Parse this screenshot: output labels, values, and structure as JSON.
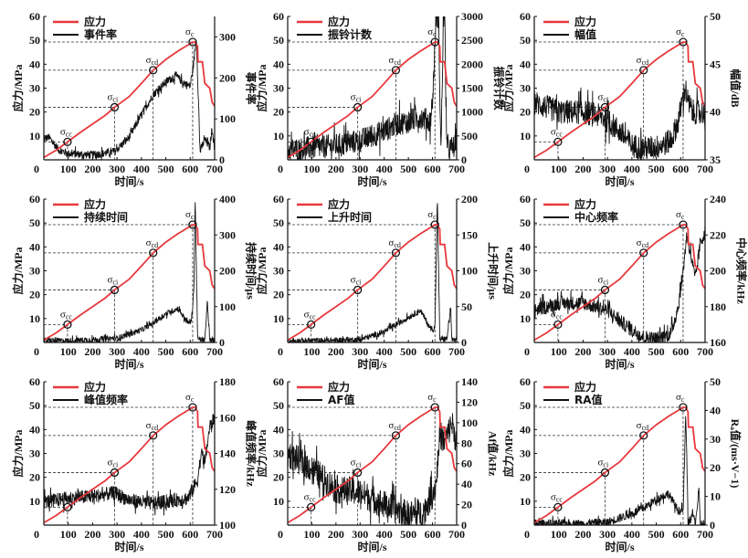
{
  "figure": {
    "x_tick_labels": [
      "0",
      "100",
      "200",
      "300",
      "400",
      "500",
      "600",
      "700"
    ],
    "xlabel": "时间/s",
    "left_ylabel": "应力/MPa",
    "left_tick_labels": [
      "10",
      "20",
      "30",
      "40",
      "50",
      "60"
    ],
    "stress_legend": "应力",
    "stress_color": "#e8383d",
    "ae_color": "#111111",
    "markers": [
      {
        "label": "σ",
        "sub": "cc",
        "t": 97,
        "stress": 7.5
      },
      {
        "label": "σ",
        "sub": "ci",
        "t": 290,
        "stress": 22
      },
      {
        "label": "σ",
        "sub": "cd",
        "t": 448,
        "stress": 37.5
      },
      {
        "label": "σ",
        "sub": "c",
        "t": 610,
        "stress": 49.3
      }
    ]
  },
  "chart_data": [
    {
      "type": "line",
      "title": "",
      "legend": [
        "应力",
        "事件率"
      ],
      "xlabel": "时间/s",
      "ylabel": "应力/MPa",
      "y2label": "事件率",
      "xlim": [
        0,
        700
      ],
      "ylim": [
        0,
        60
      ],
      "y2lim": [
        0,
        350
      ],
      "y2ticks": [
        "0",
        "100",
        "200",
        "300"
      ],
      "y2tickvals": [
        0,
        100,
        200,
        300
      ],
      "ae_profile": [
        [
          0,
          50
        ],
        [
          20,
          55
        ],
        [
          60,
          25
        ],
        [
          100,
          15
        ],
        [
          200,
          12
        ],
        [
          290,
          20
        ],
        [
          350,
          55
        ],
        [
          400,
          110
        ],
        [
          450,
          160
        ],
        [
          500,
          190
        ],
        [
          540,
          205
        ],
        [
          580,
          185
        ],
        [
          600,
          180
        ],
        [
          615,
          240
        ],
        [
          625,
          300
        ],
        [
          635,
          120
        ],
        [
          640,
          20
        ],
        [
          660,
          50
        ],
        [
          680,
          30
        ],
        [
          690,
          80
        ],
        [
          700,
          20
        ]
      ],
      "noise": 10
    },
    {
      "type": "line",
      "title": "",
      "legend": [
        "应力",
        "振铃计数"
      ],
      "xlabel": "时间/s",
      "ylabel": "应力/MPa",
      "y2label": "振铃计数",
      "xlim": [
        0,
        700
      ],
      "ylim": [
        0,
        60
      ],
      "y2lim": [
        0,
        3000
      ],
      "y2ticks": [
        "0",
        "500",
        "1000",
        "1500",
        "2000",
        "2500",
        "3000"
      ],
      "y2tickvals": [
        0,
        500,
        1000,
        1500,
        2000,
        2500,
        3000
      ],
      "ae_profile": [
        [
          0,
          200
        ],
        [
          100,
          250
        ],
        [
          200,
          300
        ],
        [
          300,
          400
        ],
        [
          400,
          600
        ],
        [
          450,
          750
        ],
        [
          500,
          800
        ],
        [
          550,
          900
        ],
        [
          590,
          800
        ],
        [
          600,
          1200
        ],
        [
          615,
          3000
        ],
        [
          625,
          3000
        ],
        [
          635,
          100
        ],
        [
          645,
          3000
        ],
        [
          650,
          3000
        ],
        [
          660,
          200
        ],
        [
          700,
          300
        ]
      ],
      "noise": 250
    },
    {
      "type": "line",
      "title": "",
      "legend": [
        "应力",
        "幅值"
      ],
      "xlabel": "时间/s",
      "ylabel": "应力/MPa",
      "y2label": "幅值/dB",
      "xlim": [
        0,
        700
      ],
      "ylim": [
        0,
        60
      ],
      "y2lim": [
        35,
        50
      ],
      "y2ticks": [
        "35",
        "40",
        "45",
        "50"
      ],
      "y2tickvals": [
        35,
        40,
        45,
        50
      ],
      "ae_profile": [
        [
          0,
          41
        ],
        [
          100,
          40
        ],
        [
          200,
          40
        ],
        [
          280,
          39.5
        ],
        [
          350,
          38
        ],
        [
          400,
          36.5
        ],
        [
          450,
          36.2
        ],
        [
          500,
          36.3
        ],
        [
          560,
          37
        ],
        [
          590,
          39
        ],
        [
          610,
          41.5
        ],
        [
          620,
          42.5
        ],
        [
          630,
          41
        ],
        [
          650,
          40
        ],
        [
          700,
          40
        ]
      ],
      "noise": 1.3
    },
    {
      "type": "line",
      "title": "",
      "legend": [
        "应力",
        "持续时间"
      ],
      "xlabel": "时间/s",
      "ylabel": "应力/MPa",
      "y2label": "持续时间/μs",
      "xlim": [
        0,
        700
      ],
      "ylim": [
        0,
        60
      ],
      "y2lim": [
        0,
        400
      ],
      "y2ticks": [
        "0",
        "100",
        "200",
        "300",
        "400"
      ],
      "y2tickvals": [
        0,
        100,
        200,
        300,
        400
      ],
      "ae_profile": [
        [
          0,
          5
        ],
        [
          100,
          5
        ],
        [
          200,
          8
        ],
        [
          300,
          12
        ],
        [
          400,
          35
        ],
        [
          450,
          55
        ],
        [
          500,
          80
        ],
        [
          550,
          95
        ],
        [
          590,
          55
        ],
        [
          605,
          60
        ],
        [
          615,
          150
        ],
        [
          620,
          400
        ],
        [
          625,
          220
        ],
        [
          630,
          10
        ],
        [
          660,
          5
        ],
        [
          670,
          115
        ],
        [
          680,
          5
        ],
        [
          700,
          5
        ]
      ],
      "noise": 8
    },
    {
      "type": "line",
      "title": "",
      "legend": [
        "应力",
        "上升时间"
      ],
      "xlabel": "时间/s",
      "ylabel": "应力/MPa",
      "y2label": "上升时间/μs",
      "xlim": [
        0,
        700
      ],
      "ylim": [
        0,
        60
      ],
      "y2lim": [
        0,
        200
      ],
      "y2ticks": [
        "0",
        "50",
        "100",
        "150",
        "200"
      ],
      "y2tickvals": [
        0,
        50,
        100,
        150,
        200
      ],
      "ae_profile": [
        [
          0,
          2
        ],
        [
          200,
          3
        ],
        [
          300,
          4
        ],
        [
          400,
          15
        ],
        [
          450,
          25
        ],
        [
          500,
          35
        ],
        [
          550,
          45
        ],
        [
          590,
          20
        ],
        [
          610,
          18
        ],
        [
          620,
          200
        ],
        [
          625,
          105
        ],
        [
          630,
          5
        ],
        [
          660,
          5
        ],
        [
          675,
          50
        ],
        [
          680,
          3
        ],
        [
          700,
          3
        ]
      ],
      "noise": 4
    },
    {
      "type": "line",
      "title": "",
      "legend": [
        "应力",
        "中心频率"
      ],
      "xlabel": "时间/s",
      "ylabel": "应力/MPa",
      "y2label": "中心频率/kHz",
      "xlim": [
        0,
        700
      ],
      "ylim": [
        0,
        60
      ],
      "y2lim": [
        160,
        240
      ],
      "y2ticks": [
        "160",
        "180",
        "200",
        "220",
        "240"
      ],
      "y2tickvals": [
        160,
        180,
        200,
        220,
        240
      ],
      "ae_profile": [
        [
          0,
          178
        ],
        [
          100,
          182
        ],
        [
          200,
          182
        ],
        [
          300,
          178
        ],
        [
          350,
          172
        ],
        [
          400,
          167
        ],
        [
          450,
          163
        ],
        [
          500,
          162
        ],
        [
          560,
          165
        ],
        [
          590,
          180
        ],
        [
          610,
          200
        ],
        [
          625,
          220
        ],
        [
          640,
          210
        ],
        [
          660,
          195
        ],
        [
          680,
          215
        ],
        [
          700,
          222
        ]
      ],
      "noise": 4
    },
    {
      "type": "line",
      "title": "",
      "legend": [
        "应力",
        "峰值频率"
      ],
      "xlabel": "时间/s",
      "ylabel": "应力/MPa",
      "y2label": "峰值频率/kHz",
      "xlim": [
        0,
        700
      ],
      "ylim": [
        0,
        60
      ],
      "y2lim": [
        100,
        180
      ],
      "y2ticks": [
        "100",
        "120",
        "140",
        "160",
        "180"
      ],
      "y2tickvals": [
        100,
        120,
        140,
        160,
        180
      ],
      "ae_profile": [
        [
          0,
          113
        ],
        [
          100,
          115
        ],
        [
          200,
          116
        ],
        [
          290,
          118
        ],
        [
          350,
          114
        ],
        [
          400,
          113
        ],
        [
          450,
          112
        ],
        [
          500,
          113
        ],
        [
          590,
          115
        ],
        [
          610,
          120
        ],
        [
          630,
          125
        ],
        [
          645,
          140
        ],
        [
          660,
          135
        ],
        [
          680,
          155
        ],
        [
          700,
          160
        ]
      ],
      "noise": 4
    },
    {
      "type": "line",
      "title": "",
      "legend": [
        "应力",
        "AF值"
      ],
      "xlabel": "时间/s",
      "ylabel": "应力/MPa",
      "y2label": "Af值/kHz",
      "xlim": [
        0,
        700
      ],
      "ylim": [
        0,
        60
      ],
      "y2lim": [
        0,
        140
      ],
      "y2ticks": [
        "0",
        "20",
        "40",
        "60",
        "80",
        "100",
        "120",
        "140"
      ],
      "y2tickvals": [
        0,
        20,
        40,
        60,
        80,
        100,
        120,
        140
      ],
      "ae_profile": [
        [
          0,
          70
        ],
        [
          100,
          55
        ],
        [
          200,
          35
        ],
        [
          300,
          32
        ],
        [
          400,
          20
        ],
        [
          450,
          15
        ],
        [
          500,
          10
        ],
        [
          560,
          12
        ],
        [
          600,
          30
        ],
        [
          615,
          40
        ],
        [
          630,
          90
        ],
        [
          650,
          80
        ],
        [
          680,
          100
        ],
        [
          700,
          80
        ]
      ],
      "noise": 14
    },
    {
      "type": "line",
      "title": "",
      "legend": [
        "应力",
        "RA值"
      ],
      "xlabel": "时间/s",
      "ylabel": "应力/MPa",
      "y2label": "Rₐ值/(ms·V−1)",
      "xlim": [
        0,
        700
      ],
      "ylim": [
        0,
        60
      ],
      "y2lim": [
        0,
        50
      ],
      "y2ticks": [
        "0",
        "10",
        "20",
        "30",
        "40",
        "50"
      ],
      "y2tickvals": [
        0,
        10,
        20,
        30,
        40,
        50
      ],
      "ae_profile": [
        [
          0,
          0.5
        ],
        [
          200,
          0.5
        ],
        [
          300,
          1
        ],
        [
          400,
          4
        ],
        [
          450,
          6
        ],
        [
          500,
          9
        ],
        [
          550,
          11
        ],
        [
          590,
          5
        ],
        [
          610,
          5
        ],
        [
          615,
          20
        ],
        [
          620,
          38
        ],
        [
          625,
          25
        ],
        [
          630,
          0.5
        ],
        [
          650,
          4
        ],
        [
          660,
          0.5
        ],
        [
          675,
          12
        ],
        [
          680,
          0.5
        ],
        [
          700,
          0.5
        ]
      ],
      "noise": 1.5
    }
  ],
  "stress_curve": [
    [
      0,
      1
    ],
    [
      50,
      4
    ],
    [
      97,
      7.5
    ],
    [
      150,
      11.5
    ],
    [
      200,
      15
    ],
    [
      250,
      18.5
    ],
    [
      290,
      22
    ],
    [
      350,
      26.5
    ],
    [
      400,
      32
    ],
    [
      448,
      37.5
    ],
    [
      500,
      42
    ],
    [
      550,
      45.5
    ],
    [
      590,
      48
    ],
    [
      610,
      49.3
    ],
    [
      620,
      49.3
    ],
    [
      630,
      47.5
    ],
    [
      632,
      41
    ],
    [
      650,
      41
    ],
    [
      660,
      32
    ],
    [
      680,
      30
    ],
    [
      690,
      24
    ],
    [
      700,
      22.5
    ]
  ]
}
